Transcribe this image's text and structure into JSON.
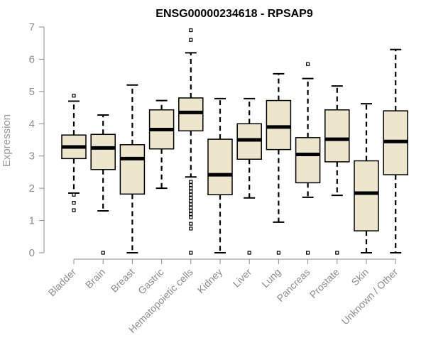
{
  "chart_data": {
    "type": "boxplot",
    "title": "ENSG00000234618 - RPSAP9",
    "ylabel": "Expression",
    "xlabel": "",
    "ylim": [
      0,
      7
    ],
    "yticks": [
      0,
      1,
      2,
      3,
      4,
      5,
      6,
      7
    ],
    "grid": false,
    "box_fill": "#ede5cc",
    "box_stroke": "#000000",
    "categories": [
      "Bladder",
      "Brain",
      "Breast",
      "Gastric",
      "Hematopoietic cells",
      "Kidney",
      "Liver",
      "Lung",
      "Pancreas",
      "Prostate",
      "Skin",
      "Unknown / Other"
    ],
    "boxes": [
      {
        "whisker_low": 1.85,
        "q1": 2.92,
        "median": 3.28,
        "q3": 3.65,
        "whisker_high": 4.7,
        "outliers": [
          4.87,
          1.8,
          1.55,
          1.32
        ]
      },
      {
        "whisker_low": 1.3,
        "q1": 2.58,
        "median": 3.25,
        "q3": 3.67,
        "whisker_high": 4.27,
        "outliers": [
          0.0
        ]
      },
      {
        "whisker_low": 0.0,
        "q1": 1.82,
        "median": 2.92,
        "q3": 3.35,
        "whisker_high": 5.2,
        "outliers": []
      },
      {
        "whisker_low": 2.0,
        "q1": 3.22,
        "median": 3.82,
        "q3": 4.43,
        "whisker_high": 4.72,
        "outliers": []
      },
      {
        "whisker_low": 2.35,
        "q1": 3.78,
        "median": 4.35,
        "q3": 4.8,
        "whisker_high": 6.2,
        "outliers": [
          6.9,
          6.6,
          2.2,
          2.1,
          2.0,
          1.9,
          1.8,
          1.7,
          1.6,
          1.5,
          1.4,
          1.3,
          1.2,
          1.1,
          0.9,
          0.75,
          0.0
        ]
      },
      {
        "whisker_low": 0.0,
        "q1": 1.8,
        "median": 2.42,
        "q3": 3.52,
        "whisker_high": 4.78,
        "outliers": []
      },
      {
        "whisker_low": 1.7,
        "q1": 2.9,
        "median": 3.5,
        "q3": 4.0,
        "whisker_high": 4.78,
        "outliers": [
          0.0
        ]
      },
      {
        "whisker_low": 0.95,
        "q1": 3.2,
        "median": 3.9,
        "q3": 4.72,
        "whisker_high": 5.55,
        "outliers": [
          0.0
        ]
      },
      {
        "whisker_low": 1.72,
        "q1": 2.17,
        "median": 3.05,
        "q3": 3.57,
        "whisker_high": 5.4,
        "outliers": [
          5.85,
          0.0
        ]
      },
      {
        "whisker_low": 1.78,
        "q1": 2.82,
        "median": 3.52,
        "q3": 4.43,
        "whisker_high": 5.17,
        "outliers": [
          0.0
        ]
      },
      {
        "whisker_low": 0.0,
        "q1": 0.68,
        "median": 1.85,
        "q3": 2.85,
        "whisker_high": 4.62,
        "outliers": []
      },
      {
        "whisker_low": 0.0,
        "q1": 2.42,
        "median": 3.45,
        "q3": 4.4,
        "whisker_high": 6.3,
        "outliers": []
      }
    ]
  }
}
